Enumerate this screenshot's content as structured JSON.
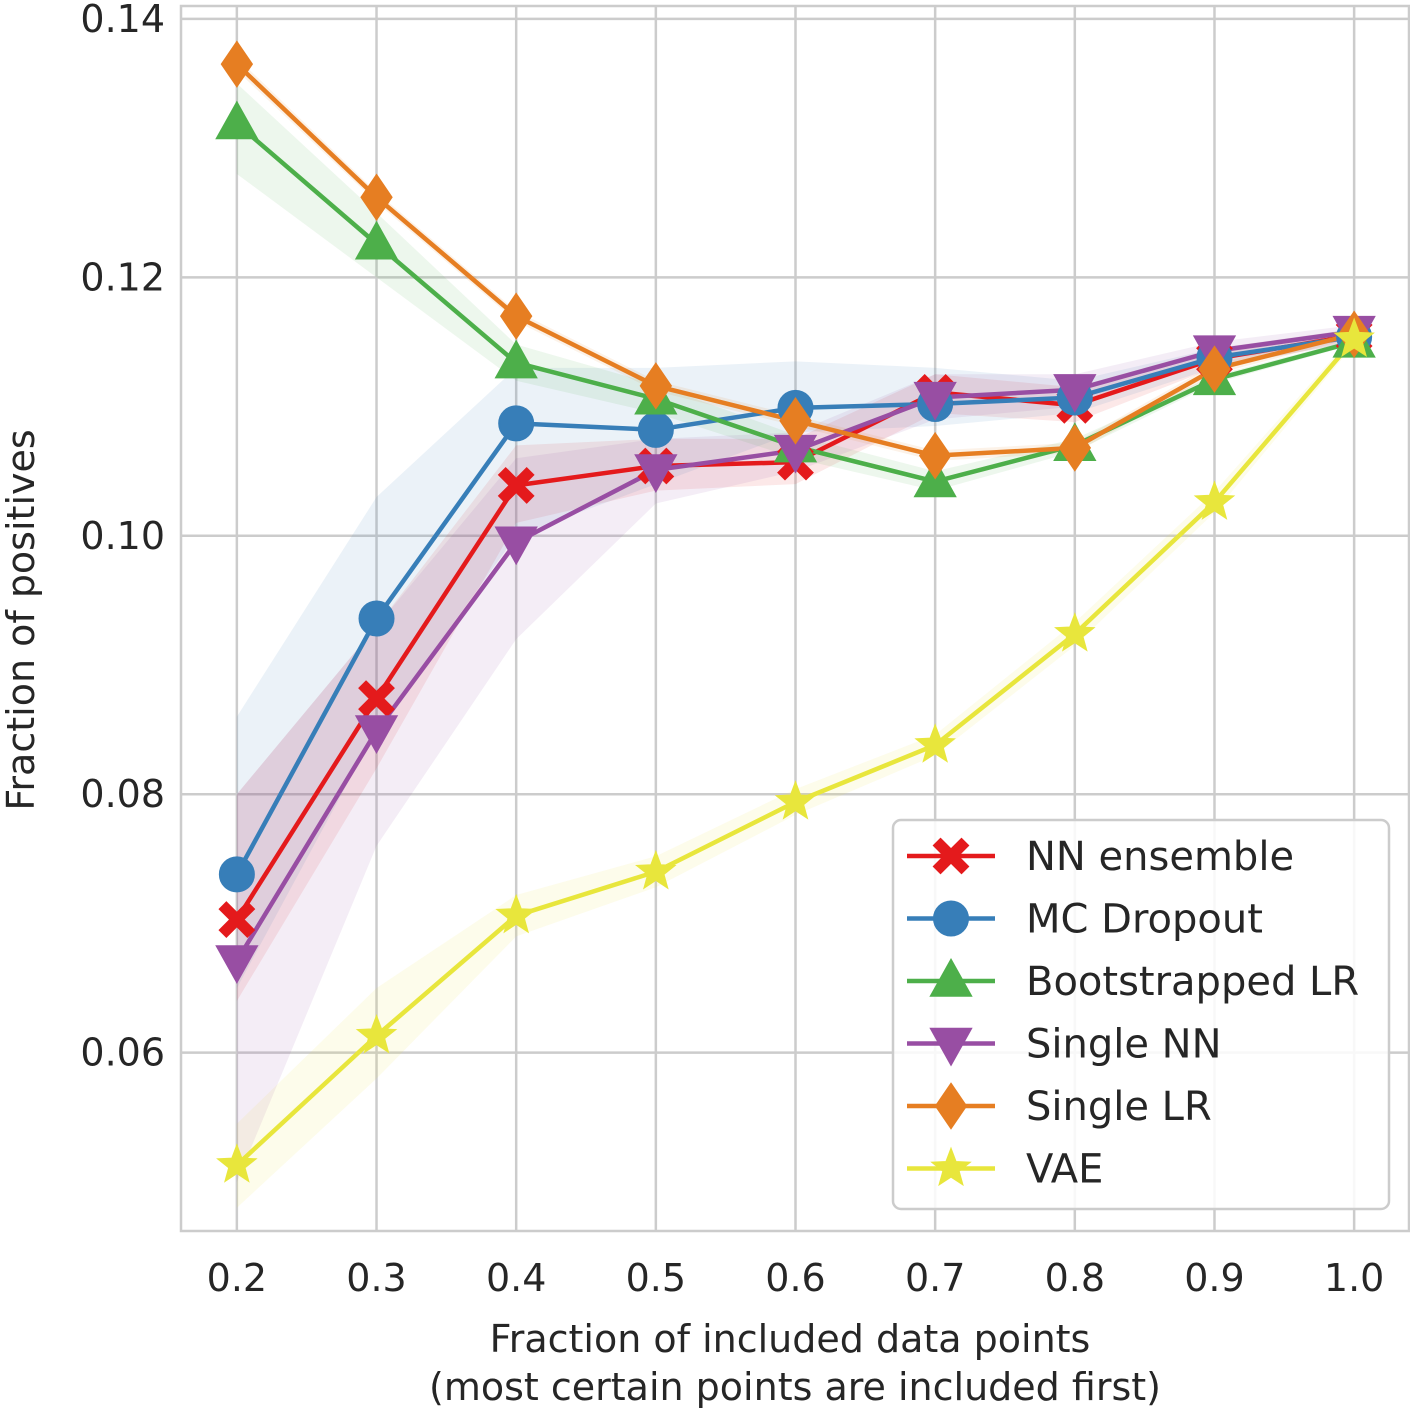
{
  "chart_data": {
    "type": "line",
    "title": "",
    "xlabel_lines": [
      "Fraction of included data points",
      "(most certain points are included first)"
    ],
    "ylabel": "Fraction of positives",
    "x": [
      0.2,
      0.3,
      0.4,
      0.5,
      0.6,
      0.7,
      0.8,
      0.9,
      1.0
    ],
    "x_tick_labels": [
      "0.2",
      "0.3",
      "0.4",
      "0.5",
      "0.6",
      "0.7",
      "0.8",
      "0.9",
      "1.0"
    ],
    "xlim": [
      0.16,
      1.04
    ],
    "ylim": [
      0.0462,
      0.141
    ],
    "y_ticks": [
      0.06,
      0.08,
      0.1,
      0.12,
      0.14
    ],
    "y_tick_labels": [
      "0.06",
      "0.08",
      "0.10",
      "0.12",
      "0.14"
    ],
    "grid": true,
    "legend_position": "lower-right",
    "series": [
      {
        "name": "NN ensemble",
        "color": "#e41a1c",
        "marker": "X",
        "values": [
          0.0703,
          0.0874,
          0.1039,
          0.1054,
          0.1057,
          0.1111,
          0.1101,
          0.1137,
          0.1155
        ],
        "band_low": [
          0.064,
          0.082,
          0.101,
          0.1035,
          0.104,
          0.1095,
          0.1088,
          0.113,
          0.115
        ],
        "band_high": [
          0.08,
          0.093,
          0.107,
          0.1075,
          0.1075,
          0.1125,
          0.1115,
          0.1145,
          0.116
        ]
      },
      {
        "name": "MC Dropout",
        "color": "#377eb8",
        "marker": "o",
        "values": [
          0.0738,
          0.0936,
          0.1087,
          0.1082,
          0.1099,
          0.1102,
          0.1107,
          0.1138,
          0.1154
        ],
        "band_low": [
          0.065,
          0.085,
          0.1,
          0.104,
          0.108,
          0.1085,
          0.1095,
          0.113,
          0.115
        ],
        "band_high": [
          0.086,
          0.103,
          0.113,
          0.113,
          0.1135,
          0.113,
          0.112,
          0.1145,
          0.116
        ]
      },
      {
        "name": "Bootstrapped LR",
        "color": "#4daf4a",
        "marker": "^",
        "values": [
          0.1319,
          0.1226,
          0.1134,
          0.1106,
          0.1069,
          0.1042,
          0.107,
          0.1121,
          0.115
        ],
        "band_low": [
          0.128,
          0.12,
          0.112,
          0.1095,
          0.106,
          0.1035,
          0.1065,
          0.1118,
          0.1148
        ],
        "band_high": [
          0.135,
          0.125,
          0.1148,
          0.1117,
          0.1078,
          0.105,
          0.1075,
          0.1124,
          0.1152
        ]
      },
      {
        "name": "Single NN",
        "color": "#984ea3",
        "marker": "v",
        "values": [
          0.0671,
          0.0849,
          0.0995,
          0.1051,
          0.1066,
          0.1107,
          0.1113,
          0.1143,
          0.1158
        ],
        "band_low": [
          0.05,
          0.076,
          0.092,
          0.1025,
          0.105,
          0.109,
          0.11,
          0.1135,
          0.1152
        ],
        "band_high": [
          0.08,
          0.093,
          0.106,
          0.1075,
          0.108,
          0.1125,
          0.1125,
          0.115,
          0.1163
        ]
      },
      {
        "name": "Single LR",
        "color": "#e67e22",
        "marker": "d",
        "values": [
          0.1365,
          0.1262,
          0.117,
          0.1116,
          0.1089,
          0.1062,
          0.1068,
          0.1129,
          0.1156
        ],
        "band_low": [
          0.136,
          0.1258,
          0.1166,
          0.1112,
          0.1085,
          0.1058,
          0.1064,
          0.1125,
          0.1153
        ],
        "band_high": [
          0.137,
          0.1266,
          0.1174,
          0.112,
          0.1093,
          0.1066,
          0.1072,
          0.1133,
          0.1159
        ]
      },
      {
        "name": "VAE",
        "color": "#e8e63c",
        "marker": "*",
        "values": [
          0.0513,
          0.0613,
          0.0706,
          0.074,
          0.0794,
          0.0838,
          0.0924,
          0.1026,
          0.1152
        ],
        "band_low": [
          0.048,
          0.058,
          0.069,
          0.0728,
          0.0784,
          0.083,
          0.0915,
          0.1018,
          0.1148
        ],
        "band_high": [
          0.0545,
          0.065,
          0.0722,
          0.0752,
          0.0804,
          0.0846,
          0.0933,
          0.1034,
          0.1156
        ]
      }
    ]
  }
}
